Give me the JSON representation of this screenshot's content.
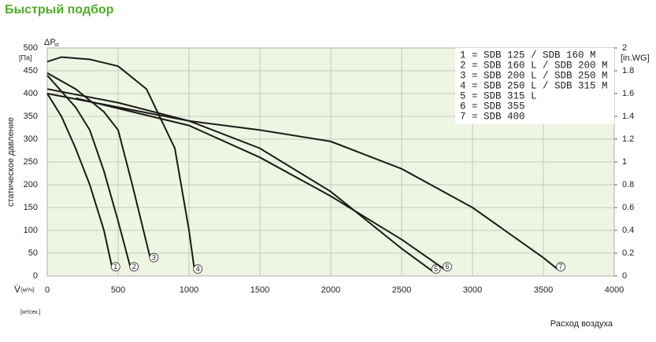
{
  "header": {
    "title": "Быстрый подбор"
  },
  "chart_data": {
    "type": "line",
    "y_label": "статическое давление",
    "y_unit": "[Па]",
    "y_symbol": "ΔP",
    "y_symbol_sub": "st",
    "y2_unit": "[in.WG]",
    "x_symbol": "V̇",
    "x_unit": "[м³/ч]",
    "x_unit2": "[м³/сек.]",
    "x_label": "Расход воздуха",
    "xlim": [
      0,
      4000
    ],
    "xticks": [
      0,
      500,
      1000,
      1500,
      2000,
      2500,
      3000,
      3500,
      4000
    ],
    "ylim": [
      0,
      500
    ],
    "yticks": [
      0,
      50,
      100,
      150,
      200,
      250,
      300,
      350,
      400,
      450,
      500
    ],
    "y2lim": [
      0,
      2
    ],
    "y2ticks": [
      0,
      0.2,
      0.4,
      0.6,
      0.8,
      1,
      1.2,
      1.4,
      1.6,
      1.8,
      2
    ],
    "grid": true,
    "legend": "top-right",
    "series": [
      {
        "name": "1 = SDB 125 / SDB 160 M",
        "label": "1",
        "color": "#1a1a1a",
        "x": [
          0,
          100,
          200,
          300,
          400,
          460
        ],
        "values": [
          400,
          350,
          280,
          200,
          100,
          15
        ]
      },
      {
        "name": "2 = SDB 160 L / SDB 200 M",
        "label": "2",
        "color": "#1a1a1a",
        "x": [
          0,
          200,
          300,
          400,
          500,
          590
        ],
        "values": [
          440,
          370,
          320,
          230,
          120,
          15
        ]
      },
      {
        "name": "3 = SDB 200 L / SDB 250 M",
        "label": "3",
        "color": "#1a1a1a",
        "x": [
          0,
          200,
          400,
          500,
          600,
          730
        ],
        "values": [
          445,
          410,
          360,
          320,
          200,
          35
        ]
      },
      {
        "name": "4 = SDB 250 L / SDB 315 M",
        "label": "4",
        "color": "#1a1a1a",
        "x": [
          0,
          100,
          300,
          500,
          700,
          900,
          1000,
          1040
        ],
        "values": [
          470,
          480,
          475,
          460,
          410,
          280,
          100,
          10
        ]
      },
      {
        "name": "5 = SDB 315 L",
        "label": "5",
        "color": "#1a1a1a",
        "x": [
          0,
          500,
          1000,
          1500,
          2000,
          2500,
          2720
        ],
        "values": [
          410,
          380,
          340,
          280,
          185,
          60,
          10
        ]
      },
      {
        "name": "6 = SDB 355",
        "label": "6",
        "color": "#1a1a1a",
        "x": [
          200,
          1000,
          1500,
          2000,
          2500,
          2800
        ],
        "values": [
          390,
          330,
          260,
          175,
          80,
          15
        ]
      },
      {
        "name": "7 = SDB 400",
        "label": "7",
        "color": "#1a1a1a",
        "x": [
          0,
          1000,
          1500,
          2000,
          2500,
          3000,
          3500,
          3600
        ],
        "values": [
          400,
          340,
          320,
          295,
          235,
          150,
          40,
          15
        ]
      }
    ]
  }
}
